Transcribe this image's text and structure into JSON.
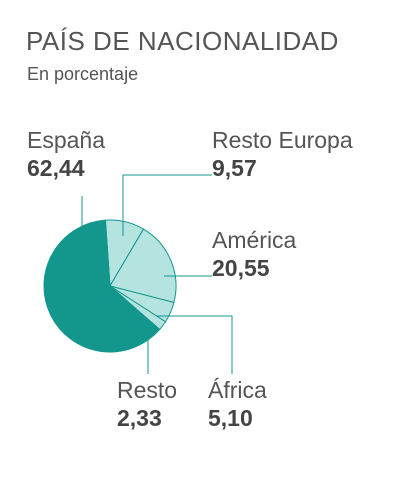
{
  "chart_data": {
    "type": "pie",
    "title": "PAÍS DE NACIONALIDAD",
    "subtitle": "En porcentaje",
    "slices": [
      {
        "label": "España",
        "value": 62.44,
        "value_text": "62,44",
        "color": "#13978c"
      },
      {
        "label": "Resto Europa",
        "value": 9.57,
        "value_text": "9,57",
        "color": "#b5e3e0"
      },
      {
        "label": "América",
        "value": 20.55,
        "value_text": "20,55",
        "color": "#b5e3e0"
      },
      {
        "label": "África",
        "value": 5.1,
        "value_text": "5,10",
        "color": "#b5e3e0"
      },
      {
        "label": "Resto",
        "value": 2.33,
        "value_text": "2,33",
        "color": "#b5e3e0"
      }
    ],
    "legend": "none"
  },
  "colors": {
    "stroke": "#13978c",
    "leader": "#13978c"
  }
}
